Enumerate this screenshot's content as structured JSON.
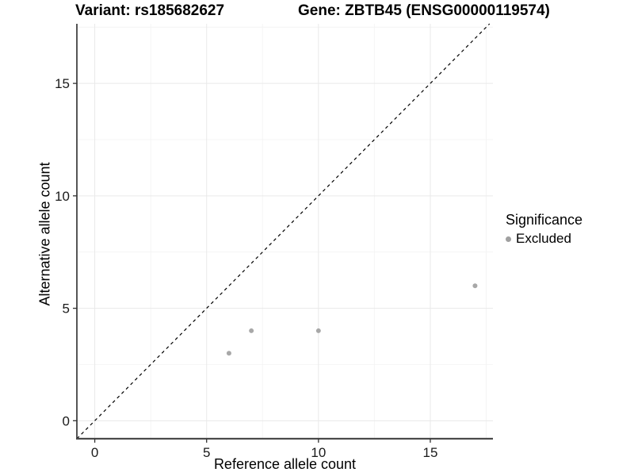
{
  "header": {
    "variant_title": "Variant: rs185682627",
    "gene_title": "Gene: ZBTB45 (ENSG00000119574)"
  },
  "legend": {
    "title": "Significance",
    "items": [
      {
        "label": "Excluded",
        "color": "#a0a0a0"
      }
    ]
  },
  "colors": {
    "grid_major": "#e9e9e9",
    "grid_minor": "#f4f4f4",
    "axis_line_left": "#2b2b2b",
    "axis_line_bottom": "#4a4a4a",
    "tick_mark": "#333333",
    "tick_label": "#1a1a1a",
    "point": "#a8a8a8",
    "abline": "#000000"
  },
  "chart_data": {
    "type": "scatter",
    "title_left": "Variant: rs185682627",
    "title_right": "Gene: ZBTB45 (ENSG00000119574)",
    "xlabel": "Reference allele count",
    "ylabel": "Alternative allele count",
    "x_ticks": [
      0,
      5,
      10,
      15
    ],
    "y_ticks": [
      0,
      5,
      10,
      15
    ],
    "x_minor_ticks": [
      2.5,
      7.5,
      12.5,
      17.5
    ],
    "y_minor_ticks": [
      2.5,
      7.5,
      12.5,
      17.5
    ],
    "xlim": [
      -0.8,
      17.8
    ],
    "ylim": [
      -0.8,
      17.65
    ],
    "grid": true,
    "legend_position": "right",
    "legend_title": "Significance",
    "abline": {
      "slope": 1,
      "intercept": 0,
      "style": "dashed"
    },
    "series": [
      {
        "name": "Excluded",
        "points": [
          [
            6,
            3
          ],
          [
            7,
            4
          ],
          [
            10,
            4
          ],
          [
            17,
            6
          ]
        ]
      }
    ]
  }
}
